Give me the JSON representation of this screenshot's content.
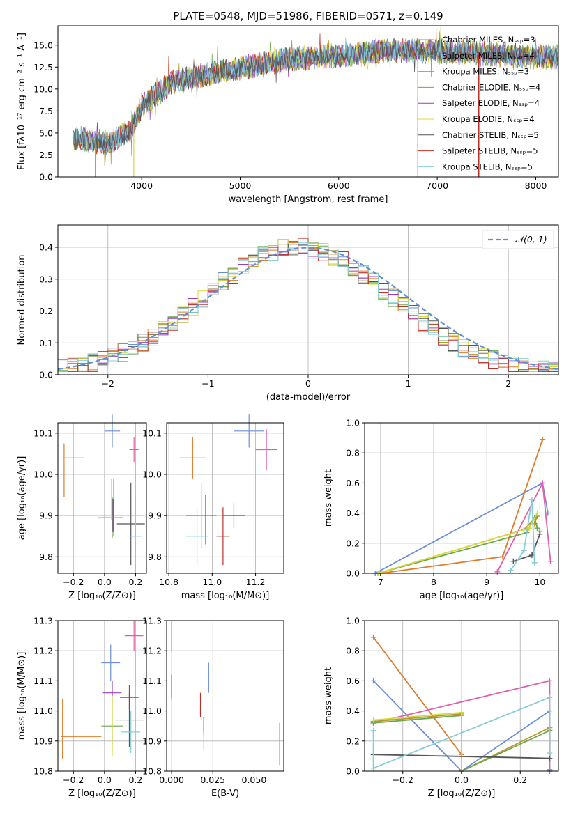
{
  "chart_data": [
    {
      "type": "line",
      "title": "PLATE=0548, MJD=51986, FIBERID=0571, z=0.149",
      "xlabel": "wavelength [Angstrom, rest frame]",
      "ylabel": "Flux [fλ10⁻¹⁷ erg cm⁻² s⁻¹ A⁻¹]",
      "xlim": [
        3150,
        8230
      ],
      "ylim": [
        0,
        17.2
      ],
      "xticks": [
        "4000",
        "5000",
        "6000",
        "7000",
        "8000"
      ],
      "yticks": [
        "0.0",
        "2.5",
        "5.0",
        "7.5",
        "10.0",
        "12.5",
        "15.0"
      ],
      "legend": "top-right",
      "series": [
        {
          "name": "Chabrier MILES, Nₛₛₚ=3",
          "color": "#6a8fd8"
        },
        {
          "name": "Salpeter MILES, Nₛₛₚ=4",
          "color": "#e07b2a"
        },
        {
          "name": "Kroupa MILES, Nₛₛₚ=3",
          "color": "#b89a2e"
        },
        {
          "name": "Chabrier ELODIE, Nₛₛₚ=4",
          "color": "#6aa84f"
        },
        {
          "name": "Salpeter ELODIE, Nₛₛₚ=4",
          "color": "#9a3cc0"
        },
        {
          "name": "Kroupa ELODIE, Nₛₛₚ=4",
          "color": "#d9d93a"
        },
        {
          "name": "Chabrier STELIB, Nₛₛₚ=5",
          "color": "#555555"
        },
        {
          "name": "Salpeter STELIB, Nₛₛₚ=5",
          "color": "#c0302a"
        },
        {
          "name": "Kroupa STELIB, Nₛₛₚ=5",
          "color": "#87cdd6"
        }
      ],
      "trend": {
        "x": [
          3300,
          3500,
          3700,
          3900,
          4000,
          4300,
          4600,
          5000,
          5500,
          6000,
          6500,
          7000,
          7500,
          8000
        ],
        "y": [
          4.5,
          4.1,
          3.9,
          5.5,
          8.0,
          10.8,
          11.5,
          12.4,
          13.4,
          13.8,
          14.4,
          14.3,
          14.0,
          13.7
        ]
      }
    },
    {
      "type": "step",
      "xlabel": "(data-model)/error",
      "ylabel": "Normed distribution",
      "xlim": [
        -2.5,
        2.5
      ],
      "ylim": [
        0,
        0.47
      ],
      "xticks": [
        "−2",
        "−1",
        "0",
        "1",
        "2"
      ],
      "yticks": [
        "0.0",
        "0.1",
        "0.2",
        "0.3",
        "0.4"
      ],
      "gaussian_label": "𝒩(0, 1)",
      "legend": "top-right",
      "gaussian_color": "#5b8ed6"
    },
    {
      "type": "errorbar",
      "xlabel": "Z [log₁₀(Z/Z⊙)]",
      "ylabel": "age  [log₁₀(age/yr)]",
      "xlim": [
        -0.3,
        0.27
      ],
      "ylim": [
        9.76,
        10.125
      ],
      "xticks": [
        "−0.2",
        "0.0",
        "0.2"
      ],
      "xtick_values": [
        -0.2,
        0.0,
        0.2
      ],
      "yticks": [
        "9.8",
        "9.9",
        "10.0",
        "10.1"
      ],
      "ytick_values": [
        9.8,
        9.9,
        10.0,
        10.1
      ],
      "points": [
        {
          "color": "#6a8fd8",
          "x": 0.05,
          "xerr": 0.05,
          "y": 10.105,
          "yerr": 0.04
        },
        {
          "color": "#e07b2a",
          "x": -0.26,
          "xerr": 0.0,
          "y": 10.01,
          "yerr": 0.065
        },
        {
          "color": "#e07b2a",
          "x": -0.2,
          "xerr": 0.07,
          "y": 10.04,
          "yerr": 0.0
        },
        {
          "color": "#e35ea8",
          "x": 0.19,
          "xerr": 0.03,
          "y": 10.06,
          "yerr": 0.03
        },
        {
          "color": "#6aa84f",
          "x": 0.05,
          "xerr": 0.07,
          "y": 9.895,
          "yerr": 0.05
        },
        {
          "color": "#9a3cc0",
          "x": 0.055,
          "xerr": 0.0,
          "y": 9.9,
          "yerr": 0.04
        },
        {
          "color": "#b89a2e",
          "x": 0.02,
          "xerr": 0.06,
          "y": 9.895,
          "yerr": 0.0
        },
        {
          "color": "#d9d93a",
          "x": 0.045,
          "xerr": 0.0,
          "y": 9.94,
          "yerr": 0.05
        },
        {
          "color": "#555555",
          "x": 0.17,
          "xerr": 0.09,
          "y": 9.88,
          "yerr": 0.1
        },
        {
          "color": "#87cdd6",
          "x": 0.2,
          "xerr": 0.04,
          "y": 9.85,
          "yerr": 0.1
        },
        {
          "color": "#555555",
          "x": 0.06,
          "xerr": 0.0,
          "y": 9.92,
          "yerr": 0.07
        }
      ]
    },
    {
      "type": "errorbar",
      "xlabel": "mass [log₁₀(M/M⊙)]",
      "xlim": [
        10.79,
        11.33
      ],
      "ylim": [
        9.76,
        10.125
      ],
      "xticks": [
        "10.8",
        "11.0",
        "11.2"
      ],
      "xtick_values": [
        10.8,
        11.0,
        11.2
      ],
      "yticks": [
        "9.8",
        "9.9",
        "10.0",
        "10.1"
      ],
      "ytick_values": [
        9.8,
        9.9,
        10.0,
        10.1
      ],
      "points": [
        {
          "color": "#6a8fd8",
          "x": 11.17,
          "xerr": 0.07,
          "y": 10.105,
          "yerr": 0.04
        },
        {
          "color": "#e07b2a",
          "x": 10.91,
          "xerr": 0.06,
          "y": 10.04,
          "yerr": 0.05
        },
        {
          "color": "#e35ea8",
          "x": 11.25,
          "xerr": 0.05,
          "y": 10.06,
          "yerr": 0.05
        },
        {
          "color": "#6aa84f",
          "x": 10.95,
          "xerr": 0.07,
          "y": 9.9,
          "yerr": 0.05
        },
        {
          "color": "#9a3cc0",
          "x": 11.1,
          "xerr": 0.05,
          "y": 9.9,
          "yerr": 0.03
        },
        {
          "color": "#d9d93a",
          "x": 10.95,
          "xerr": 0.0,
          "y": 9.9,
          "yerr": 0.08
        },
        {
          "color": "#555555",
          "x": 10.97,
          "xerr": 0.0,
          "y": 9.89,
          "yerr": 0.06
        },
        {
          "color": "#c0302a",
          "x": 11.05,
          "xerr": 0.03,
          "y": 9.85,
          "yerr": 0.07
        },
        {
          "color": "#87cdd6",
          "x": 10.93,
          "xerr": 0.05,
          "y": 9.85,
          "yerr": 0.07
        }
      ]
    },
    {
      "type": "line",
      "xlabel": "age  [log₁₀(age/yr)]",
      "ylabel": "mass weight",
      "xlim": [
        6.7,
        10.35
      ],
      "ylim": [
        0,
        1.0
      ],
      "xticks": [
        "7",
        "8",
        "9",
        "10"
      ],
      "xtick_values": [
        7,
        8,
        9,
        10
      ],
      "yticks": [
        "0.0",
        "0.2",
        "0.4",
        "0.6",
        "0.8",
        "1.0"
      ],
      "ytick_values": [
        0,
        0.2,
        0.4,
        0.6,
        0.8,
        1.0
      ],
      "series": [
        {
          "color": "#6a8fd8",
          "x": [
            6.9,
            10.05,
            10.15
          ],
          "y": [
            0.0,
            0.6,
            0.4
          ]
        },
        {
          "color": "#e07b2a",
          "x": [
            7.0,
            9.3,
            10.05
          ],
          "y": [
            0.0,
            0.11,
            0.89
          ]
        },
        {
          "color": "#e35ea8",
          "x": [
            9.2,
            10.05,
            10.2
          ],
          "y": [
            0.01,
            0.6,
            0.08
          ]
        },
        {
          "color": "#b89a2e",
          "x": [
            6.95,
            9.7,
            9.95,
            9.9
          ],
          "y": [
            0.0,
            0.29,
            0.38,
            0.33
          ]
        },
        {
          "color": "#6aa84f",
          "x": [
            6.95,
            9.75,
            9.9,
            9.95
          ],
          "y": [
            0.0,
            0.27,
            0.37,
            0.3
          ]
        },
        {
          "color": "#d9d93a",
          "x": [
            6.95,
            9.8,
            9.95
          ],
          "y": [
            0.0,
            0.3,
            0.4
          ]
        },
        {
          "color": "#555555",
          "x": [
            9.5,
            9.85,
            10.0,
            10.0
          ],
          "y": [
            0.08,
            0.12,
            0.26,
            0.28
          ]
        },
        {
          "color": "#87cdd6",
          "x": [
            9.45,
            9.7,
            9.85,
            9.9
          ],
          "y": [
            0.02,
            0.15,
            0.49,
            0.07
          ]
        }
      ]
    },
    {
      "type": "errorbar",
      "xlabel": "Z [log₁₀(Z/Z⊙)]",
      "ylabel": "mass [log₁₀(M/M⊙)]",
      "xlim": [
        -0.3,
        0.27
      ],
      "ylim": [
        10.8,
        11.3
      ],
      "xticks": [
        "−0.2",
        "0.0",
        "0.2"
      ],
      "xtick_values": [
        -0.2,
        0.0,
        0.2
      ],
      "yticks": [
        "10.8",
        "10.9",
        "11.0",
        "11.1",
        "11.2",
        "11.3"
      ],
      "ytick_values": [
        10.8,
        10.9,
        11.0,
        11.1,
        11.2,
        11.3
      ],
      "points": [
        {
          "color": "#e35ea8",
          "x": 0.19,
          "xerr": 0.06,
          "y": 11.25,
          "yerr": 0.05
        },
        {
          "color": "#6a8fd8",
          "x": 0.04,
          "xerr": 0.06,
          "y": 11.16,
          "yerr": 0.06
        },
        {
          "color": "#9a3cc0",
          "x": 0.05,
          "xerr": 0.06,
          "y": 11.06,
          "yerr": 0.04
        },
        {
          "color": "#c0302a",
          "x": 0.16,
          "xerr": 0.06,
          "y": 11.045,
          "yerr": 0.04
        },
        {
          "color": "#555555",
          "x": 0.16,
          "xerr": 0.09,
          "y": 10.97,
          "yerr": 0.09
        },
        {
          "color": "#6aa84f",
          "x": 0.05,
          "xerr": 0.07,
          "y": 10.95,
          "yerr": 0.06
        },
        {
          "color": "#87cdd6",
          "x": 0.17,
          "xerr": 0.06,
          "y": 10.93,
          "yerr": 0.07
        },
        {
          "color": "#e07b2a",
          "x": -0.27,
          "xerr": 0.0,
          "y": 10.94,
          "yerr": 0.1
        },
        {
          "color": "#e07b2a",
          "x": -0.15,
          "xerr": 0.13,
          "y": 10.915,
          "yerr": 0.0
        },
        {
          "color": "#d9d93a",
          "x": 0.05,
          "xerr": 0.0,
          "y": 10.95,
          "yerr": 0.1
        }
      ]
    },
    {
      "type": "errorbar",
      "xlabel": "E(B-V)",
      "xlim": [
        -0.003,
        0.068
      ],
      "ylim": [
        10.8,
        11.3
      ],
      "xticks": [
        "0.000",
        "0.025",
        "0.050"
      ],
      "xtick_values": [
        0.0,
        0.025,
        0.05
      ],
      "yticks": [
        "10.8",
        "10.9",
        "11.0",
        "11.1",
        "11.2",
        "11.3"
      ],
      "ytick_values": [
        10.8,
        10.9,
        11.0,
        11.1,
        11.2,
        11.3
      ],
      "points": [
        {
          "color": "#e35ea8",
          "x": 0.0,
          "xerr": 0.0,
          "y": 11.25,
          "yerr": 0.05
        },
        {
          "color": "#9a3cc0",
          "x": 0.0,
          "xerr": 0.0,
          "y": 11.08,
          "yerr": 0.04
        },
        {
          "color": "#d9d93a",
          "x": 0.0,
          "xerr": 0.0,
          "y": 10.98,
          "yerr": 0.06
        },
        {
          "color": "#6a8fd8",
          "x": 0.0225,
          "xerr": 0.0,
          "y": 11.11,
          "yerr": 0.05
        },
        {
          "color": "#c0302a",
          "x": 0.0175,
          "xerr": 0.0,
          "y": 11.02,
          "yerr": 0.04
        },
        {
          "color": "#555555",
          "x": 0.0195,
          "xerr": 0.0,
          "y": 10.95,
          "yerr": 0.03
        },
        {
          "color": "#87cdd6",
          "x": 0.0195,
          "xerr": 0.0,
          "y": 10.9,
          "yerr": 0.03
        },
        {
          "color": "#e07b2a",
          "x": 0.0655,
          "xerr": 0.0,
          "y": 10.89,
          "yerr": 0.07
        }
      ]
    },
    {
      "type": "line",
      "xlabel": "Z [log₁₀(Z/Z⊙)]",
      "ylabel": "mass weight",
      "xlim": [
        -0.33,
        0.33
      ],
      "ylim": [
        0,
        1.0
      ],
      "xticks": [
        "−0.2",
        "0.0",
        "0.2"
      ],
      "xtick_values": [
        -0.2,
        0.0,
        0.2
      ],
      "yticks": [
        "0.0",
        "0.2",
        "0.4",
        "0.6",
        "0.8",
        "1.0"
      ],
      "ytick_values": [
        0,
        0.2,
        0.4,
        0.6,
        0.8,
        1.0
      ],
      "series": [
        {
          "color": "#e07b2a",
          "x": [
            -0.3,
            0.0,
            0.0
          ],
          "y": [
            0.89,
            0.11,
            0.0
          ]
        },
        {
          "color": "#6a8fd8",
          "x": [
            -0.3,
            0.0,
            0.3,
            0.3
          ],
          "y": [
            0.6,
            0.0,
            0.4,
            0.0
          ]
        },
        {
          "color": "#e35ea8",
          "x": [
            -0.3,
            0.3,
            0.3
          ],
          "y": [
            0.32,
            0.6,
            0.01
          ]
        },
        {
          "color": "#b89a2e",
          "x": [
            -0.3,
            0.0,
            0.0,
            0.3
          ],
          "y": [
            0.33,
            0.38,
            0.0,
            0.29
          ]
        },
        {
          "color": "#6aa84f",
          "x": [
            -0.3,
            0.0,
            0.0,
            0.3
          ],
          "y": [
            0.32,
            0.37,
            0.0,
            0.27
          ]
        },
        {
          "color": "#d9d93a",
          "x": [
            -0.3,
            0.0,
            0.0
          ],
          "y": [
            0.34,
            0.39,
            0.0
          ]
        },
        {
          "color": "#555555",
          "x": [
            -0.3,
            0.3,
            0.3
          ],
          "y": [
            0.11,
            0.085,
            0.28
          ]
        },
        {
          "color": "#87cdd6",
          "x": [
            -0.3,
            -0.3,
            0.3,
            0.3
          ],
          "y": [
            0.27,
            0.02,
            0.49,
            0.12
          ]
        }
      ]
    }
  ]
}
